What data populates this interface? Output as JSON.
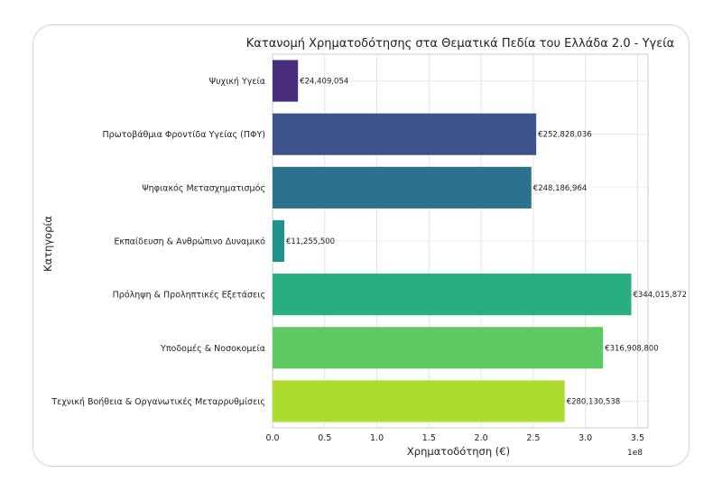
{
  "chart_data": {
    "type": "bar",
    "orientation": "horizontal",
    "title": "Κατανομή Χρηματοδότησης στα Θεματικά Πεδία του Ελλάδα 2.0 - Υγεία",
    "xlabel": "Χρηματοδότηση (€)",
    "ylabel": "Κατηγορία",
    "x_multiplier_label": "1e8",
    "xlim": [
      0,
      360000000
    ],
    "xticks": [
      {
        "value": 0,
        "label": "0.0"
      },
      {
        "value": 50000000,
        "label": "0.5"
      },
      {
        "value": 100000000,
        "label": "1.0"
      },
      {
        "value": 150000000,
        "label": "1.5"
      },
      {
        "value": 200000000,
        "label": "2.0"
      },
      {
        "value": 250000000,
        "label": "2.5"
      },
      {
        "value": 300000000,
        "label": "3.0"
      },
      {
        "value": 350000000,
        "label": "3.5"
      }
    ],
    "grid": true,
    "categories": [
      "Ψυχική Υγεία",
      "Πρωτοβάθμια Φροντίδα Υγείας (ΠΦΥ)",
      "Ψηφιακός Μετασχηματισμός",
      "Εκπαίδευση & Ανθρώπινο Δυναμικό",
      "Πρόληψη & Προληπτικές Εξετάσεις",
      "Υποδομές & Νοσοκομεία",
      "Τεχνική Βοήθεια & Οργανωτικές Μεταρρυθμίσεις"
    ],
    "values": [
      24409054,
      252828036,
      248186964,
      11255500,
      344015872,
      316908800,
      280130538
    ],
    "value_labels": [
      "€24,409,054",
      "€252,828,036",
      "€248,186,964",
      "€11,255,500",
      "€344,015,872",
      "€316,908,800",
      "€280,130,538"
    ],
    "colors": [
      "#472d7b",
      "#3b528b",
      "#2c728e",
      "#21918c",
      "#28ae80",
      "#5ec962",
      "#addc30"
    ]
  }
}
